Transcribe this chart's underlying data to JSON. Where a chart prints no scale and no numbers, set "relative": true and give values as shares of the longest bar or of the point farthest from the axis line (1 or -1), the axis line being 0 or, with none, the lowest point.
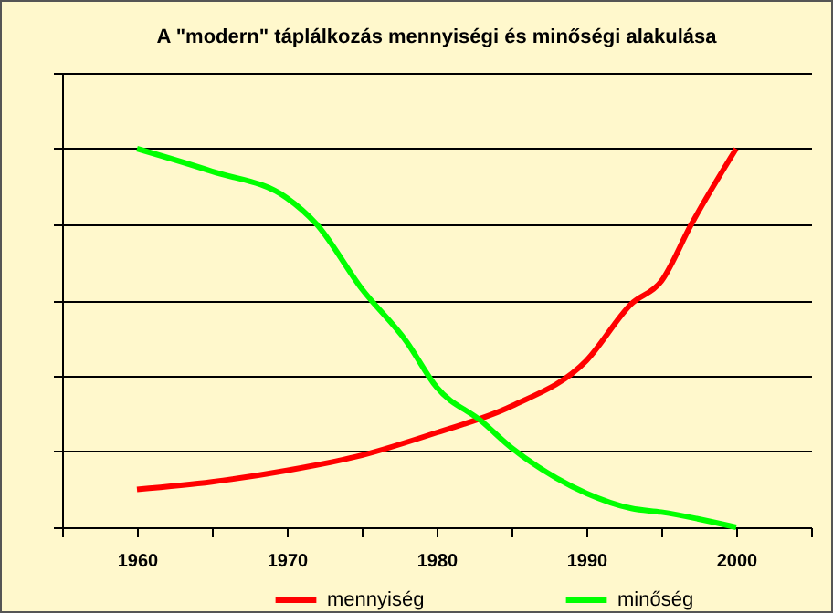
{
  "chart_data": {
    "type": "line",
    "title": "A \"modern\" táplálkozás mennyiségi és minőségi alakulása",
    "relative": true,
    "xlim": [
      1955,
      2005
    ],
    "xticks": [
      {
        "value": 1955,
        "label": null
      },
      1960,
      {
        "value": 1965,
        "label": null
      },
      1970,
      {
        "value": 1975,
        "label": null
      },
      1980,
      {
        "value": 1985,
        "label": null
      },
      1990,
      {
        "value": 1995,
        "label": null
      },
      2000,
      {
        "value": 2005,
        "label": null
      }
    ],
    "grid": "y",
    "legend": "bottom",
    "marker": "none",
    "line_style": "solid",
    "series": [
      {
        "name": "mennyiség",
        "color": "#ff0000",
        "x": [
          1960,
          1965,
          1970,
          1975,
          1980,
          1985,
          1990,
          1993,
          1995,
          1997,
          2000
        ],
        "values": [
          0.1,
          0.12,
          0.15,
          0.19,
          0.25,
          0.32,
          0.44,
          0.59,
          0.65,
          0.8,
          1.0
        ]
      },
      {
        "name": "minőség",
        "color": "#00ff00",
        "x": [
          1960,
          1965,
          1970,
          1972,
          1975,
          1978,
          1980,
          1983,
          1985,
          1988,
          1990,
          1993,
          1995,
          2000
        ],
        "values": [
          1.0,
          0.94,
          0.87,
          0.8,
          0.63,
          0.49,
          0.37,
          0.28,
          0.21,
          0.13,
          0.09,
          0.05,
          0.04,
          0
        ]
      }
    ]
  }
}
